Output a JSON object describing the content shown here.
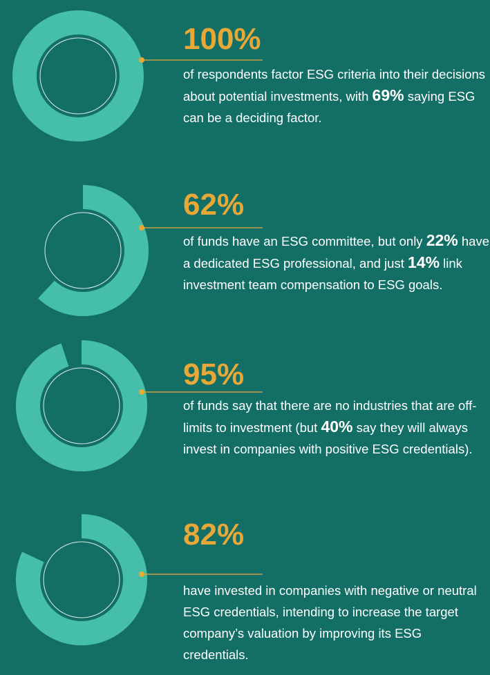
{
  "ring_color": "#45bfa8",
  "accent_color": "#e8a838",
  "items": [
    {
      "value": 100,
      "value_label": "100%",
      "parts": [
        {
          "text": "of respondents factor ESG criteria into their decisions about potential investments, with "
        },
        {
          "strong": "69%"
        },
        {
          "text": " saying ESG can be a deciding factor."
        }
      ]
    },
    {
      "value": 62,
      "value_label": "62%",
      "parts": [
        {
          "text": "of funds have an ESG committee, but only "
        },
        {
          "strong": "22%"
        },
        {
          "text": " have a dedicated ESG professional, and just "
        },
        {
          "strong": "14%"
        },
        {
          "text": " link investment team compensation to ESG goals."
        }
      ]
    },
    {
      "value": 95,
      "value_label": "95%",
      "parts": [
        {
          "text": "of funds say that there are no industries that are off-limits to investment (but "
        },
        {
          "strong": "40%"
        },
        {
          "text": " say they will always invest in companies with positive ESG credentials)."
        }
      ]
    },
    {
      "value": 82,
      "value_label": "82%",
      "parts": [
        {
          "text": "have invested in companies with negative or neutral ESG credentials, intending to increase the target company’s valuation by improving its ESG credentials."
        }
      ]
    }
  ]
}
